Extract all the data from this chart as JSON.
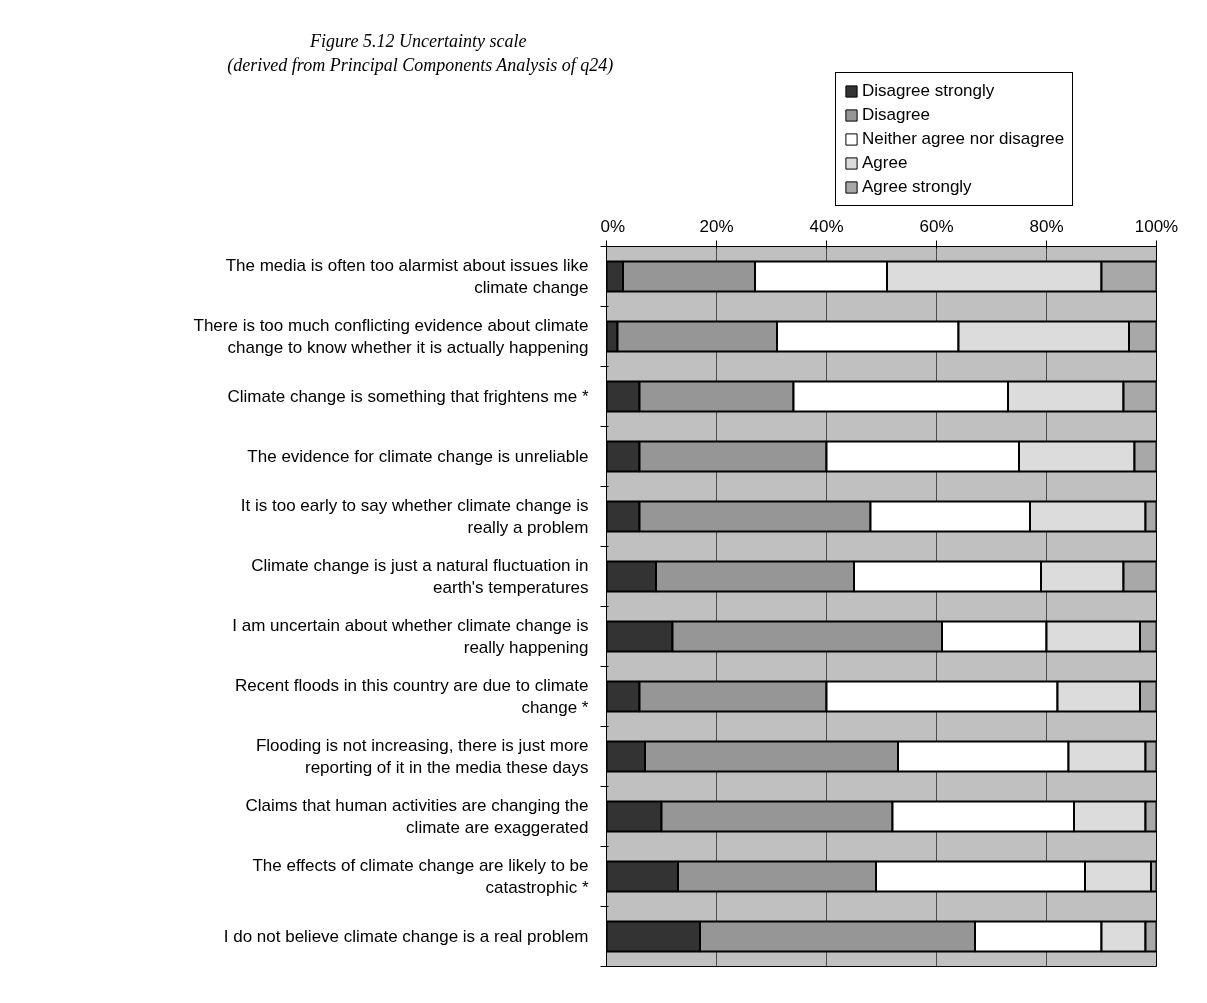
{
  "chart_data": {
    "type": "bar",
    "orientation": "horizontal",
    "stacked": true,
    "title": "Figure 5.12  Uncertainty scale",
    "subtitle": "(derived from Principal Components Analysis of q24)",
    "categories": [
      "The media is often too alarmist about issues like climate change",
      "There is too much conflicting evidence about climate change to know whether it is actually happening",
      "Climate change is something that frightens me *",
      "The evidence for climate change is unreliable",
      "It is too early to say whether climate change is really a problem",
      "Climate change is just a natural fluctuation in earth's temperatures",
      "I am uncertain about whether climate change is really happening",
      "Recent floods in this country are due to climate change *",
      "Flooding is not increasing, there is just more reporting of it in the media these days",
      "Claims that human activities are changing the climate are exaggerated",
      "The effects of climate change are likely to be catastrophic *",
      "I do not believe climate change is a real problem"
    ],
    "series": [
      {
        "name": "Disagree strongly",
        "color": "#333333",
        "values": [
          3,
          2,
          6,
          6,
          6,
          9,
          12,
          6,
          7,
          10,
          13,
          17
        ]
      },
      {
        "name": "Disagree",
        "color": "#969696",
        "values": [
          24,
          29,
          28,
          34,
          42,
          36,
          49,
          34,
          46,
          42,
          36,
          50
        ]
      },
      {
        "name": "Neither agree nor disagree",
        "color": "#ffffff",
        "values": [
          24,
          33,
          39,
          35,
          29,
          34,
          19,
          42,
          31,
          33,
          38,
          23
        ]
      },
      {
        "name": "Agree",
        "color": "#dcdcdc",
        "values": [
          39,
          31,
          21,
          21,
          21,
          15,
          17,
          15,
          14,
          13,
          12,
          8
        ]
      },
      {
        "name": "Agree strongly",
        "color": "#a8a8a8",
        "values": [
          10,
          5,
          6,
          4,
          2,
          6,
          3,
          3,
          2,
          2,
          1,
          2
        ]
      }
    ],
    "xlim": [
      0,
      100
    ],
    "xticks": [
      {
        "value": 0,
        "label": "0%"
      },
      {
        "value": 20,
        "label": "20%"
      },
      {
        "value": 40,
        "label": "40%"
      },
      {
        "value": 60,
        "label": "60%"
      },
      {
        "value": 80,
        "label": "80%"
      },
      {
        "value": 100,
        "label": "100%"
      }
    ],
    "grid": "x",
    "legend": "top right"
  }
}
